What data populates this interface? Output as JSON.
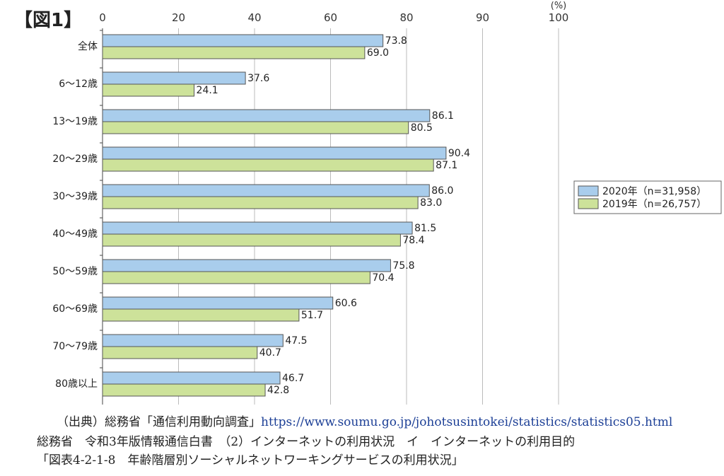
{
  "figure_label": "【図1】",
  "source": {
    "prefix": "（出典）総務省「通信利用動向調査」",
    "url": "https://www.soumu.go.jp/johotsusintokei/statistics/statistics05.html"
  },
  "citation": "総務省　令和3年版情報通信白書　（2）インターネットの利用状況　イ　インターネットの利用目的",
  "figure_title": "「図表4-2-1-8　年齢階層別ソーシャルネットワーキングサービスの利用状況」",
  "colors": {
    "s2020": "#a9cdec",
    "s2019": "#cde29a",
    "border": "#555555",
    "grid": "#bbbbbb"
  },
  "chart_data": {
    "type": "bar",
    "orientation": "horizontal",
    "unit": "(%)",
    "x_ticks": [
      "0",
      "20",
      "40",
      "60",
      "80",
      "90",
      "100"
    ],
    "xlim": [
      0,
      100
    ],
    "categories": [
      "全体",
      "6～12歳",
      "13～19歳",
      "20～29歳",
      "30～39歳",
      "40～49歳",
      "50～59歳",
      "60～69歳",
      "70～79歳",
      "80歳以上"
    ],
    "series": [
      {
        "name": "2020年（n=31,958）",
        "values": [
          73.8,
          37.6,
          86.1,
          90.4,
          86.0,
          81.5,
          75.8,
          60.6,
          47.5,
          46.7
        ],
        "labels": [
          "73.8",
          "37.6",
          "86.1",
          "90.4",
          "86.0",
          "81.5",
          "75.8",
          "60.6",
          "47.5",
          "46.7"
        ]
      },
      {
        "name": "2019年（n=26,757）",
        "values": [
          69.0,
          24.1,
          80.5,
          87.1,
          83.0,
          78.4,
          70.4,
          51.7,
          40.7,
          42.8
        ],
        "labels": [
          "69.0",
          "24.1",
          "80.5",
          "87.1",
          "83.0",
          "78.4",
          "70.4",
          "51.7",
          "40.7",
          "42.8"
        ]
      }
    ],
    "grid": true,
    "legend_position": "right"
  }
}
